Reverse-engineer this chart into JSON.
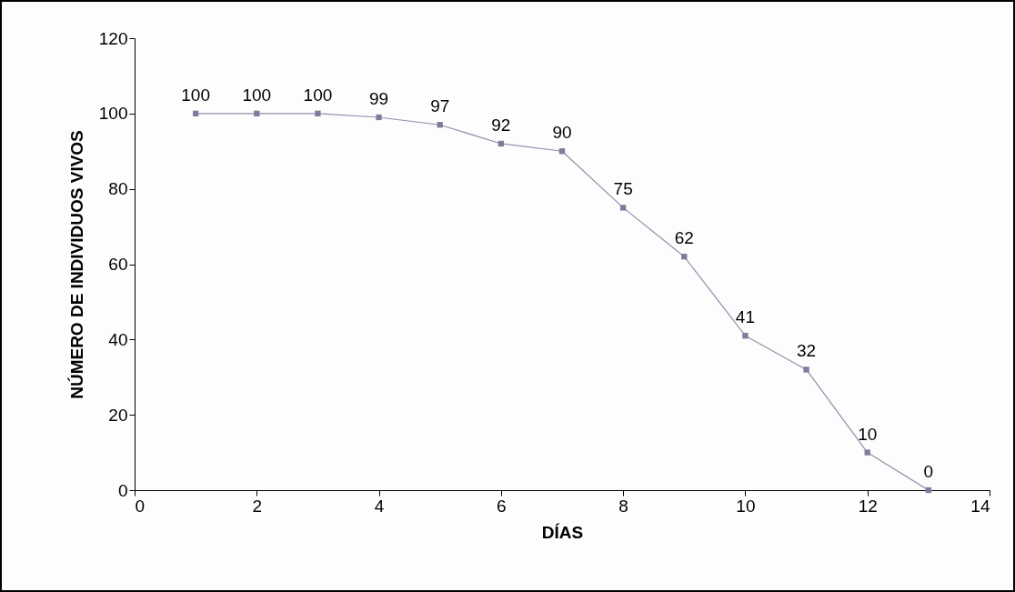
{
  "chart_data": {
    "type": "line",
    "xlabel": "DÍAS",
    "ylabel": "NÚMERO DE INDIVIDUOS VIVOS",
    "x": [
      1,
      2,
      3,
      4,
      5,
      6,
      7,
      8,
      9,
      10,
      11,
      12,
      13
    ],
    "series": [
      {
        "color": "#7c7c9c",
        "values": [
          100,
          100,
          100,
          99,
          97,
          92,
          90,
          75,
          62,
          41,
          32,
          10,
          0
        ]
      }
    ],
    "xlim": [
      0,
      14
    ],
    "xticks": [
      0,
      2,
      4,
      6,
      8,
      10,
      12,
      14
    ],
    "ylim": [
      0,
      120
    ],
    "yticks": [
      0,
      20,
      40,
      60,
      80,
      100,
      120
    ],
    "grid": false,
    "legend": false,
    "marker": "square",
    "line_style": "solid",
    "data_labels": true
  }
}
